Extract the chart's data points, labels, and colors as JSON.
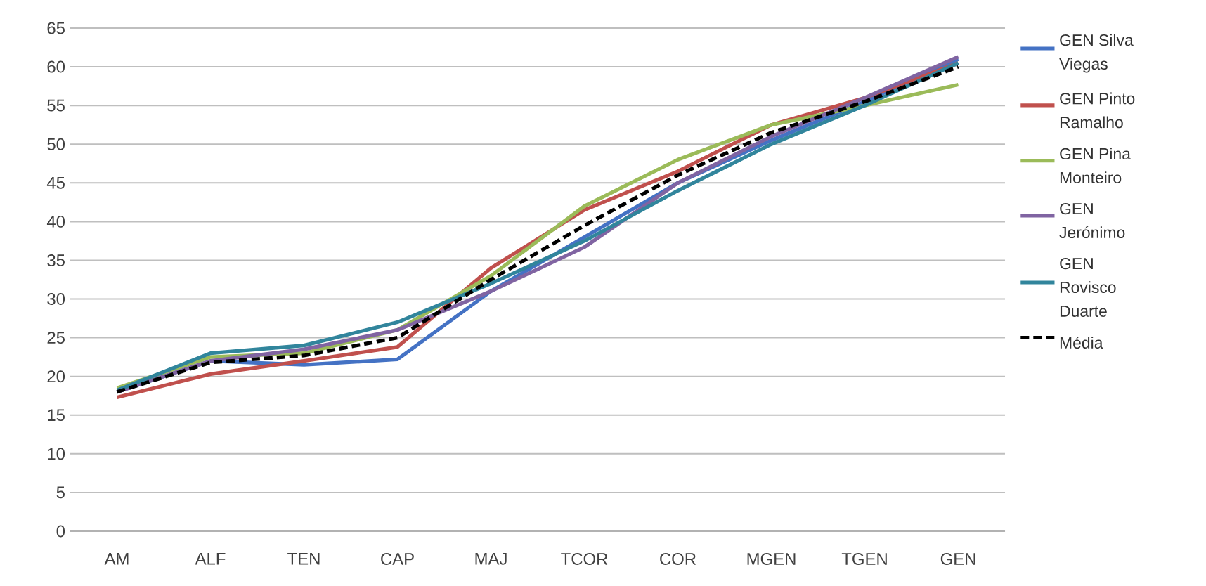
{
  "chart_data": {
    "type": "line",
    "categories": [
      "AM",
      "ALF",
      "TEN",
      "CAP",
      "MAJ",
      "TCOR",
      "COR",
      "MGEN",
      "TGEN",
      "GEN"
    ],
    "series": [
      {
        "name": "GEN Silva Viegas",
        "color": "#4472c4",
        "values": [
          18,
          22,
          21.5,
          22.2,
          31,
          38,
          45,
          50.5,
          55.5,
          61
        ]
      },
      {
        "name": "GEN Pinto Ramalho",
        "color": "#c0504d",
        "values": [
          17.3,
          20.3,
          22,
          23.8,
          34,
          41.5,
          46.5,
          52.5,
          56,
          60.5
        ]
      },
      {
        "name": "GEN Pina Monteiro",
        "color": "#9bbb59",
        "values": [
          18.5,
          22.5,
          23,
          26,
          33,
          42,
          48,
          52.5,
          55,
          57.7
        ]
      },
      {
        "name": "GEN Jerónimo",
        "color": "#8064a2",
        "values": [
          18,
          22,
          23.5,
          26,
          31,
          36.7,
          45,
          51,
          56,
          61.3
        ]
      },
      {
        "name": "GEN Rovisco Duarte",
        "color": "#31859c",
        "values": [
          18.2,
          23,
          24,
          27,
          32,
          37.5,
          44,
          50,
          55,
          60.5
        ]
      },
      {
        "name": "Média",
        "color": "#000000",
        "line_style": "dashed",
        "values": [
          18,
          21.8,
          22.7,
          25,
          32.5,
          39.5,
          46,
          51.5,
          55.5,
          60
        ]
      }
    ],
    "ylim": [
      0,
      65
    ],
    "yticks": [
      0,
      5,
      10,
      15,
      20,
      25,
      30,
      35,
      40,
      45,
      50,
      55,
      60,
      65
    ],
    "grid": "y",
    "legend": "right",
    "marker": "none",
    "line_style": "solid"
  }
}
